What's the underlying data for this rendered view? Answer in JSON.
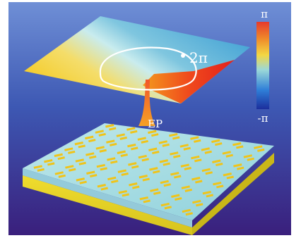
{
  "labels": {
    "loop": "2π",
    "ep": "EP",
    "scale_max": "π",
    "scale_min": "-π"
  },
  "colors": {
    "background_top": "#6f8fd6",
    "background_bottom": "#3a1f7c",
    "loop": "#ffffff",
    "element": "#f0c419",
    "substrate_top": "#a8dde4",
    "substrate_side": "#e4d326"
  },
  "colorbar": [
    "#e63a2c",
    "#ef8d2b",
    "#f3d743",
    "#9bd8d8",
    "#2f7fd8",
    "#1c2e9c"
  ]
}
